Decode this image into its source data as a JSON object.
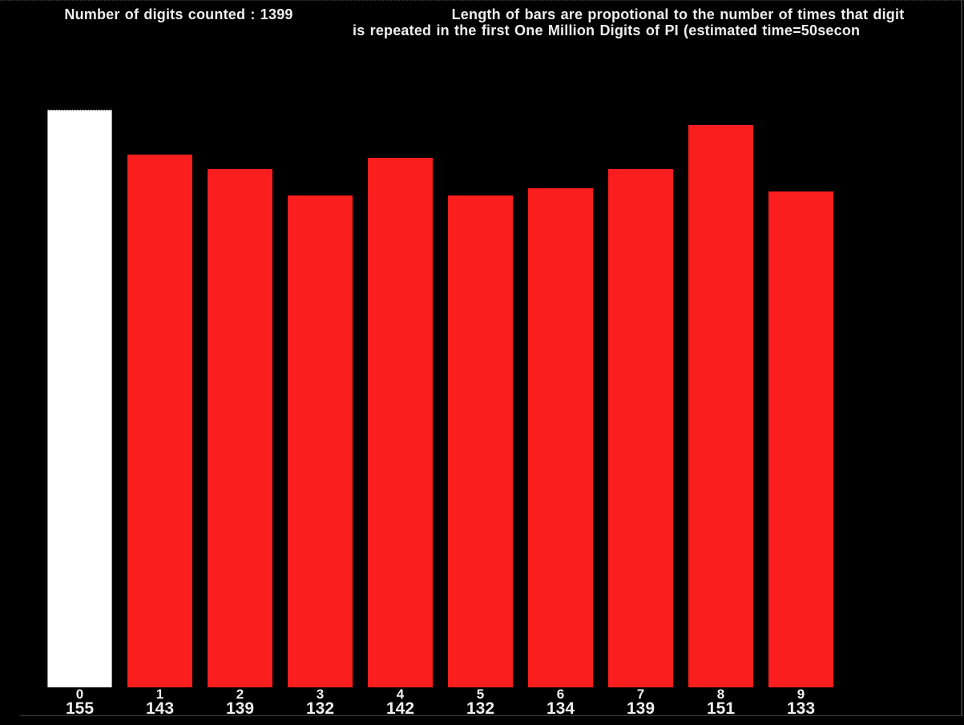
{
  "header": {
    "left_text": "Number of digits counted : 1399",
    "right_line1": "Length of bars are propotional to the number of times that digit",
    "right_line2": "is repeated in the first One Million Digits of PI (estimated time=50secon"
  },
  "chart_data": {
    "type": "bar",
    "title": "Length of bars are propotional to the number of times that digit is repeated in the first One Million Digits of PI (estimated time=50secon",
    "counter_text": "Number of digits counted : 1399",
    "total_counted": 1399,
    "categories": [
      "0",
      "1",
      "2",
      "3",
      "4",
      "5",
      "6",
      "7",
      "8",
      "9"
    ],
    "values": [
      155,
      143,
      139,
      132,
      142,
      132,
      134,
      139,
      151,
      133
    ],
    "xlabel": "",
    "ylabel": "",
    "legend": "none",
    "grid": false,
    "highlight_index": 0,
    "bar_color": "#fb1e1e",
    "highlight_bar_color": "#ffffff",
    "background_color": "#000000",
    "text_color": "#efefef"
  }
}
